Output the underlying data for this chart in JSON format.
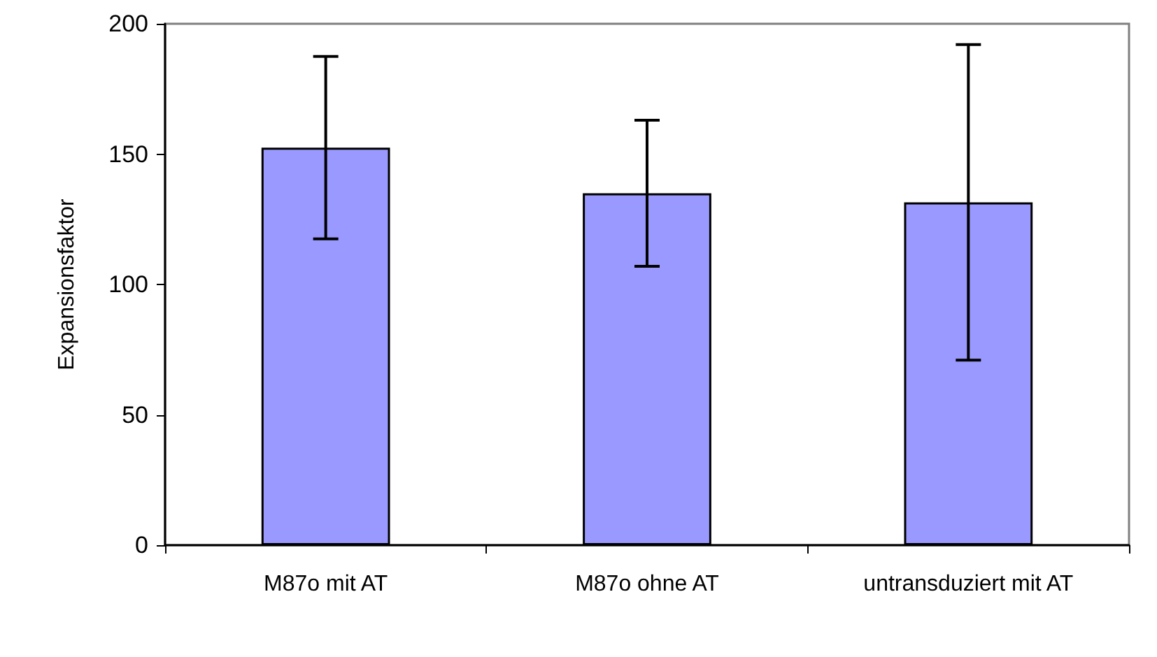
{
  "chart_data": {
    "type": "bar",
    "ylabel": "Expansionsfaktor",
    "categories": [
      "M87o mit AT",
      "M87o ohne AT",
      "untransduziert mit AT"
    ],
    "values": [
      152.5,
      135,
      131.5
    ],
    "errors": [
      35,
      28,
      60.5
    ],
    "color": "#9999ff",
    "ylim": [
      0,
      200
    ],
    "yticks": [
      0,
      50,
      100,
      150,
      200
    ],
    "grid": false
  }
}
